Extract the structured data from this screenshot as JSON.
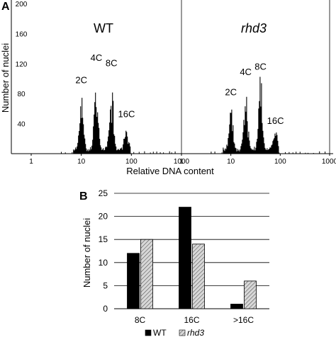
{
  "panel_a": {
    "letter": "A",
    "ylabel": "Number of nuclei",
    "xlabel": "Relative DNA content"
  },
  "panel_b": {
    "letter": "B",
    "ylabel": "Number of nuclei"
  },
  "chart_data": [
    {
      "type": "area",
      "panel": "A",
      "title": "WT",
      "xscale": "log",
      "xlim": [
        1,
        1000
      ],
      "ylim": [
        0,
        200
      ],
      "xticks": [
        "1",
        "10",
        "100",
        "1000"
      ],
      "yticks": [
        "40",
        "80",
        "120",
        "160",
        "200"
      ],
      "annotations": [
        {
          "text": "2C",
          "x": 10,
          "y": 88
        },
        {
          "text": "4C",
          "x": 20,
          "y": 118
        },
        {
          "text": "8C",
          "x": 40,
          "y": 111
        },
        {
          "text": "16C",
          "x": 80,
          "y": 43
        }
      ],
      "peaks": [
        {
          "label": "2C",
          "x": 10,
          "y": 88
        },
        {
          "label": "4C",
          "x": 20,
          "y": 118
        },
        {
          "label": "8C",
          "x": 40,
          "y": 111
        },
        {
          "label": "16C",
          "x": 80,
          "y": 43
        }
      ]
    },
    {
      "type": "area",
      "panel": "A",
      "title": "rhd3",
      "xscale": "log",
      "xlim": [
        1,
        1000
      ],
      "ylim": [
        0,
        200
      ],
      "xticks": [
        "1",
        "10",
        "100",
        "1000"
      ],
      "annotations": [
        {
          "text": "2C",
          "x": 10,
          "y": 72
        },
        {
          "text": "4C",
          "x": 20,
          "y": 99
        },
        {
          "text": "8C",
          "x": 40,
          "y": 106
        },
        {
          "text": "16C",
          "x": 80,
          "y": 34
        }
      ],
      "peaks": [
        {
          "label": "2C",
          "x": 10,
          "y": 72
        },
        {
          "label": "4C",
          "x": 20,
          "y": 99
        },
        {
          "label": "8C",
          "x": 40,
          "y": 106
        },
        {
          "label": "16C",
          "x": 80,
          "y": 34
        }
      ]
    },
    {
      "type": "bar",
      "panel": "B",
      "categories": [
        "8C",
        "16C",
        ">16C"
      ],
      "series": [
        {
          "name": "WT",
          "values": [
            12,
            22,
            1
          ],
          "color": "#000000"
        },
        {
          "name": "rhd3",
          "values": [
            15,
            14,
            6
          ],
          "color": "#cfcfcf"
        }
      ],
      "ylabel": "Number of nuclei",
      "ylim": [
        0,
        25
      ],
      "yticks": [
        "0",
        "5",
        "10",
        "15",
        "20",
        "25"
      ],
      "grid": true,
      "legend": "bottom"
    }
  ]
}
